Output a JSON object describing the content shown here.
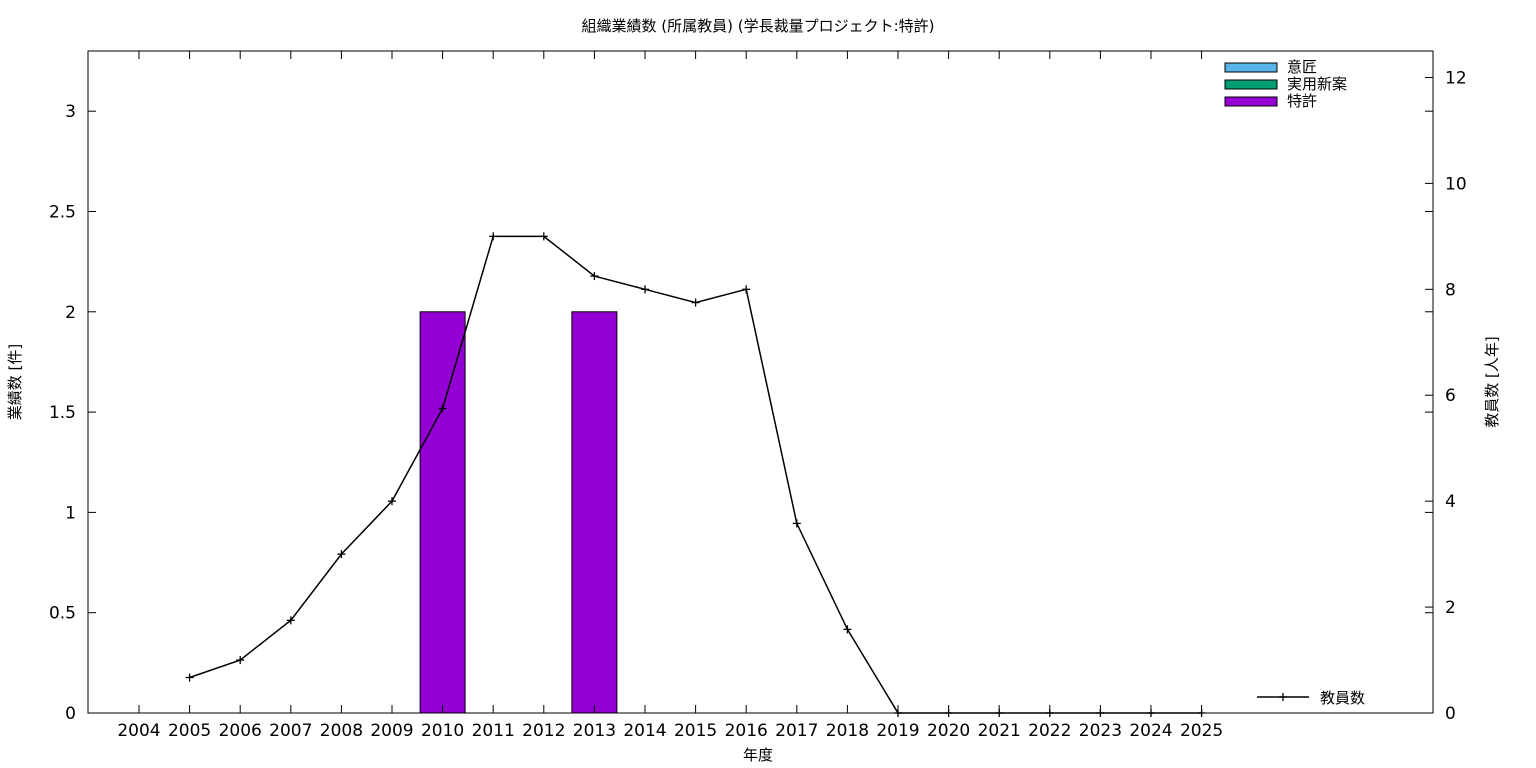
{
  "chart_data": {
    "type": "bar",
    "title": "組織業績数 (所属教員) (学長裁量プロジェクト:特許)",
    "xlabel": "年度",
    "ylabel": "業績数 [件]",
    "y2label": "教員数 [人年]",
    "categories": [
      "2004",
      "2005",
      "2006",
      "2007",
      "2008",
      "2009",
      "2010",
      "2011",
      "2012",
      "2013",
      "2014",
      "2015",
      "2016",
      "2017",
      "2018",
      "2019",
      "2020",
      "2021",
      "2022",
      "2023",
      "2024",
      "2025"
    ],
    "ylim": [
      0,
      3.3
    ],
    "y2lim": [
      0,
      12.5
    ],
    "yticks": [
      0,
      0.5,
      1,
      1.5,
      2,
      2.5,
      3
    ],
    "yticklabels": [
      "0",
      "0.5",
      "1",
      "1.5",
      "2",
      "2.5",
      "3"
    ],
    "y2ticks": [
      0,
      2,
      4,
      6,
      8,
      10,
      12
    ],
    "y2ticklabels": [
      "0",
      "2",
      "4",
      "6",
      "8",
      "10",
      "12"
    ],
    "grid": false,
    "legend_position": "top-right",
    "bar_series": [
      {
        "name": "意匠",
        "color": "#56b4e9",
        "values": [
          0,
          0,
          0,
          0,
          0,
          0,
          0,
          0,
          0,
          0,
          0,
          0,
          0,
          0,
          0,
          0,
          0,
          0,
          0,
          0,
          0,
          0
        ]
      },
      {
        "name": "実用新案",
        "color": "#009e73",
        "values": [
          0,
          0,
          0,
          0,
          0,
          0,
          0,
          0,
          0,
          0,
          0,
          0,
          0,
          0,
          0,
          0,
          0,
          0,
          0,
          0,
          0,
          0
        ]
      },
      {
        "name": "特許",
        "color": "#9400d3",
        "values": [
          0,
          0,
          0,
          0,
          0,
          0,
          2,
          0,
          0,
          2,
          0,
          0,
          0,
          0,
          0,
          0,
          0,
          0,
          0,
          0,
          0,
          0
        ]
      }
    ],
    "line_series": {
      "name": "教員数",
      "axis": "y2",
      "color": "#000000",
      "x": [
        "2005",
        "2006",
        "2007",
        "2008",
        "2009",
        "2010",
        "2011",
        "2012",
        "2013",
        "2014",
        "2015",
        "2016",
        "2017",
        "2018",
        "2019",
        "2020",
        "2021",
        "2022",
        "2023",
        "2024",
        "2025"
      ],
      "values": [
        0.67,
        1.0,
        1.75,
        3.0,
        4.0,
        5.75,
        9.0,
        9.0,
        8.25,
        8.0,
        7.75,
        8.0,
        3.58,
        1.58,
        0,
        0,
        0,
        0,
        0,
        0,
        0
      ]
    }
  }
}
